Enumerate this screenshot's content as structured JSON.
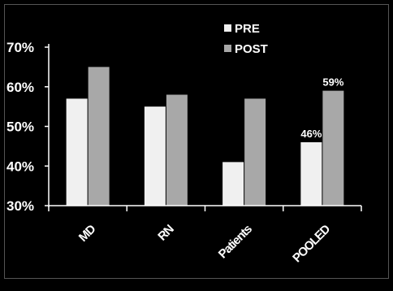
{
  "chart_data": {
    "type": "bar",
    "title": "",
    "xlabel": "",
    "ylabel": "",
    "categories": [
      "MD",
      "RN",
      "Patients",
      "POOLED"
    ],
    "series": [
      {
        "name": "PRE",
        "values": [
          57,
          55,
          41,
          46
        ],
        "color": "#f0f0f0",
        "data_labels": [
          null,
          null,
          null,
          "46%"
        ]
      },
      {
        "name": "POST",
        "values": [
          65,
          58,
          57,
          59
        ],
        "color": "#a8a8a8",
        "data_labels": [
          null,
          null,
          null,
          "59%"
        ]
      }
    ],
    "ylim": [
      30,
      70
    ],
    "yticks": [
      30,
      40,
      50,
      60,
      70
    ],
    "ytick_labels": [
      "30%",
      "40%",
      "50%",
      "60%",
      "70%"
    ],
    "grid": false,
    "legend_position": "top-right",
    "background": "#000000",
    "text_color": "#ffffff"
  }
}
